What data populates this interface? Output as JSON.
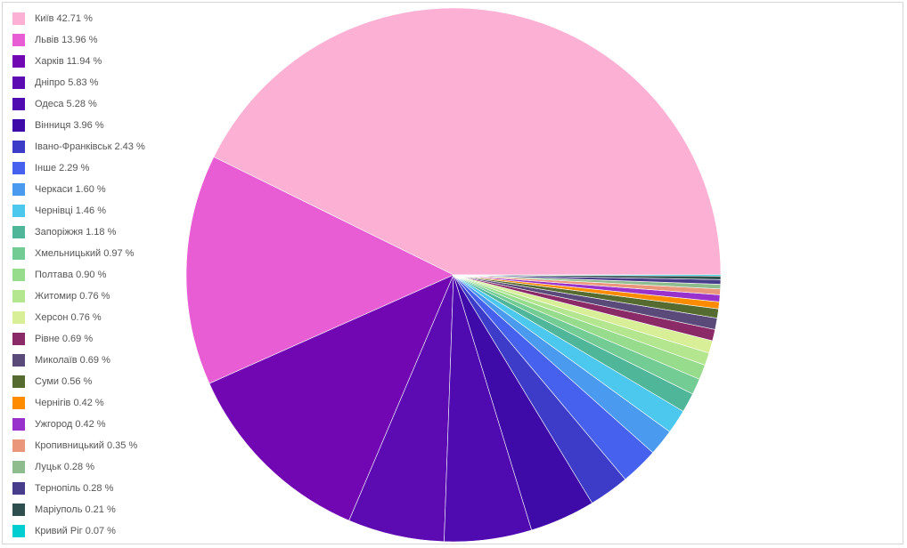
{
  "chart_data": {
    "type": "pie",
    "title": "",
    "legend_position": "left",
    "start_angle_deg": 0,
    "direction": "counterclockwise",
    "slices": [
      {
        "label": "Київ",
        "pct": "42.71 %",
        "value": 42.71,
        "color": "#fbb0d4"
      },
      {
        "label": "Львів",
        "pct": "13.96 %",
        "value": 13.96,
        "color": "#e85cd4"
      },
      {
        "label": "Харків",
        "pct": "11.94 %",
        "value": 11.94,
        "color": "#7007b2"
      },
      {
        "label": "Дніпро",
        "pct": "5.83 %",
        "value": 5.83,
        "color": "#5c0ab2"
      },
      {
        "label": "Одеса",
        "pct": "5.28 %",
        "value": 5.28,
        "color": "#4f0ab0"
      },
      {
        "label": "Вінниця",
        "pct": "3.96 %",
        "value": 3.96,
        "color": "#3e0aa8"
      },
      {
        "label": "Івано-Франківськ",
        "pct": "2.43 %",
        "value": 2.43,
        "color": "#3c3cc8"
      },
      {
        "label": "Інше",
        "pct": "2.29 %",
        "value": 2.29,
        "color": "#4561ee"
      },
      {
        "label": "Черкаси",
        "pct": "1.60 %",
        "value": 1.6,
        "color": "#4a9aef"
      },
      {
        "label": "Чернівці",
        "pct": "1.46 %",
        "value": 1.46,
        "color": "#4cc7ee"
      },
      {
        "label": "Запоріжжя",
        "pct": "1.18 %",
        "value": 1.18,
        "color": "#4fb69a"
      },
      {
        "label": "Хмельницький",
        "pct": "0.97 %",
        "value": 0.97,
        "color": "#72cc94"
      },
      {
        "label": "Полтава",
        "pct": "0.90 %",
        "value": 0.9,
        "color": "#97dc8c"
      },
      {
        "label": "Житомир",
        "pct": "0.76 %",
        "value": 0.76,
        "color": "#b4e690"
      },
      {
        "label": "Херсон",
        "pct": "0.76 %",
        "value": 0.76,
        "color": "#d8ef98"
      },
      {
        "label": "Рівне",
        "pct": "0.69 %",
        "value": 0.69,
        "color": "#8a2a66"
      },
      {
        "label": "Миколаїв",
        "pct": "0.69 %",
        "value": 0.69,
        "color": "#5a4a7a"
      },
      {
        "label": "Суми",
        "pct": "0.56 %",
        "value": 0.56,
        "color": "#556b2f"
      },
      {
        "label": "Чернігів",
        "pct": "0.42 %",
        "value": 0.42,
        "color": "#ff8c00"
      },
      {
        "label": "Ужгород",
        "pct": "0.42 %",
        "value": 0.42,
        "color": "#9932cc"
      },
      {
        "label": "Кропивницький",
        "pct": "0.35 %",
        "value": 0.35,
        "color": "#e9967a"
      },
      {
        "label": "Луцьк",
        "pct": "0.28 %",
        "value": 0.28,
        "color": "#8fbc8f"
      },
      {
        "label": "Тернопіль",
        "pct": "0.28 %",
        "value": 0.28,
        "color": "#483d8b"
      },
      {
        "label": "Маріуполь",
        "pct": "0.21 %",
        "value": 0.21,
        "color": "#2f4f4f"
      },
      {
        "label": "Кривий Ріг",
        "pct": "0.07 %",
        "value": 0.07,
        "color": "#00ced1"
      }
    ]
  }
}
